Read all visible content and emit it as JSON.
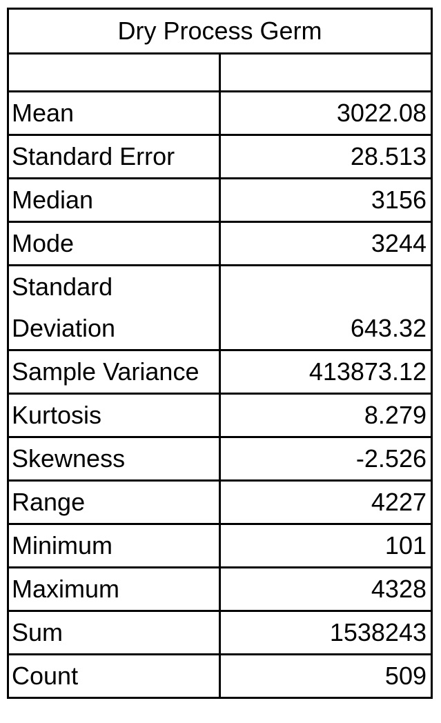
{
  "title": "Dry Process Germ",
  "header": {
    "label": "",
    "value": ""
  },
  "rows": [
    {
      "label": "Mean",
      "value": "3022.08"
    },
    {
      "label": "Standard Error",
      "value": "28.513"
    },
    {
      "label": "Median",
      "value": "3156"
    },
    {
      "label": "Mode",
      "value": "3244"
    },
    {
      "label": "Standard Deviation",
      "value": "643.32"
    },
    {
      "label": "Sample Variance",
      "value": "413873.12"
    },
    {
      "label": "Kurtosis",
      "value": "8.279"
    },
    {
      "label": "Skewness",
      "value": "-2.526"
    },
    {
      "label": "Range",
      "value": "4227"
    },
    {
      "label": "Minimum",
      "value": "101"
    },
    {
      "label": "Maximum",
      "value": "4328"
    },
    {
      "label": "Sum",
      "value": "1538243"
    },
    {
      "label": "Count",
      "value": "509"
    }
  ]
}
